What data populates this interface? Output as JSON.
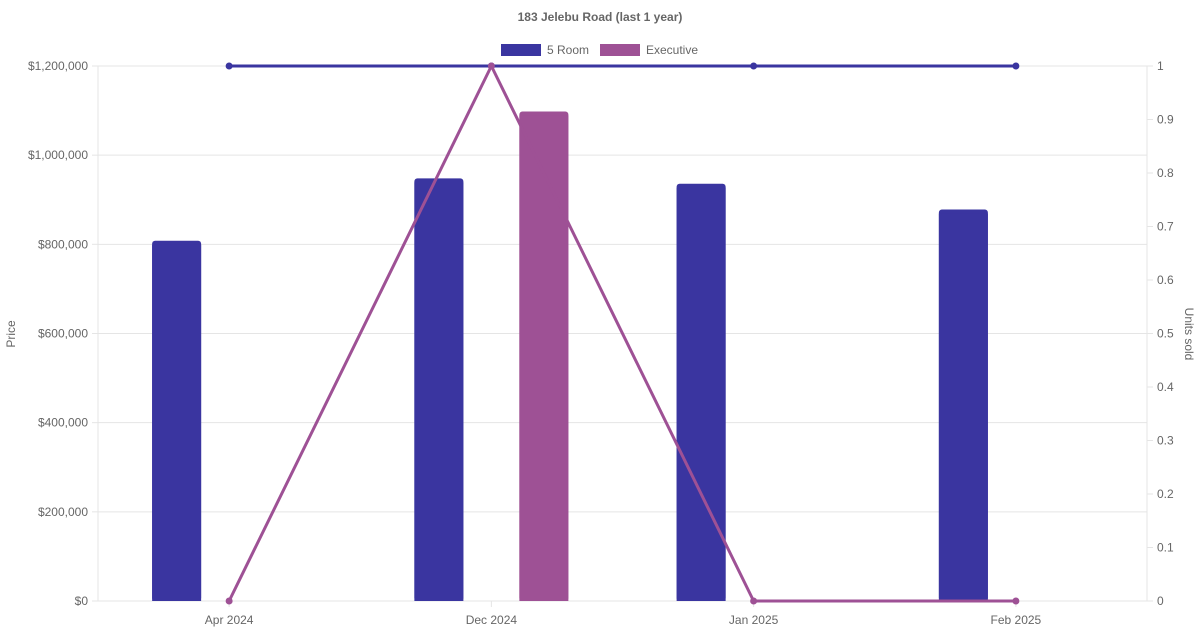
{
  "chart_data": {
    "type": "bar",
    "title": "183 Jelebu Road (last 1 year)",
    "categories": [
      "Apr 2024",
      "Dec 2024",
      "Jan 2025",
      "Feb 2025"
    ],
    "y_left": {
      "label": "Price",
      "ylim": [
        0,
        1200000
      ],
      "ticks": [
        "$0",
        "$200,000",
        "$400,000",
        "$600,000",
        "$800,000",
        "$1,000,000",
        "$1,200,000"
      ],
      "tick_values": [
        0,
        200000,
        400000,
        600000,
        800000,
        1000000,
        1200000
      ]
    },
    "y_right": {
      "label": "Units sold",
      "ylim": [
        0,
        1
      ],
      "ticks": [
        "0",
        "0.1",
        "0.2",
        "0.3",
        "0.4",
        "0.5",
        "0.6",
        "0.7",
        "0.8",
        "0.9",
        "1"
      ],
      "tick_values": [
        0,
        0.1,
        0.2,
        0.3,
        0.4,
        0.5,
        0.6,
        0.7,
        0.8,
        0.9,
        1
      ]
    },
    "bar_series": [
      {
        "name": "5 Room",
        "color": "#3a35a0",
        "values": [
          808000,
          948000,
          936000,
          878000
        ]
      },
      {
        "name": "Executive",
        "color": "#9e5195",
        "values": [
          null,
          1098000,
          null,
          null
        ]
      }
    ],
    "line_series": [
      {
        "name": "5 Room units sold",
        "color": "#3a35a0",
        "axis": "right",
        "values": [
          1,
          1,
          1,
          1
        ]
      },
      {
        "name": "Executive units sold",
        "color": "#9e5195",
        "axis": "right",
        "values": [
          0,
          1,
          0,
          0
        ]
      }
    ],
    "legend": {
      "position": "top",
      "entries": [
        "5 Room",
        "Executive"
      ]
    },
    "grid": true
  }
}
